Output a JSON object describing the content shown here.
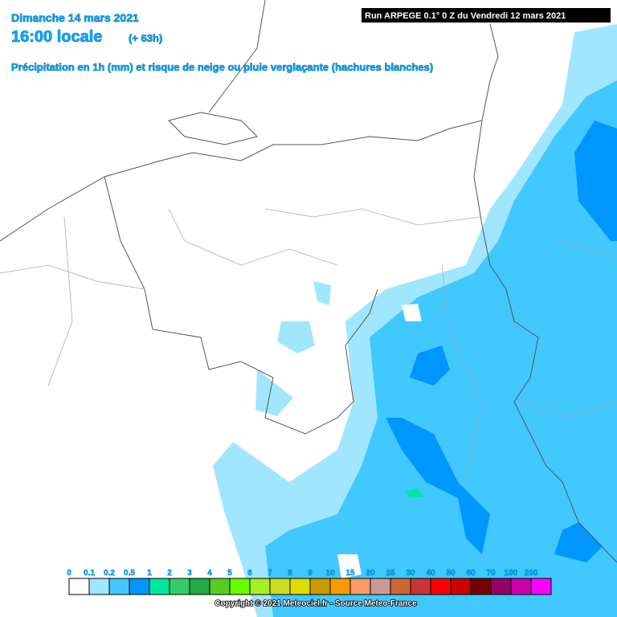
{
  "header": {
    "date": "Dimanche 14 mars 2021",
    "time": "16:00 locale",
    "offset": "(+ 63h)",
    "subtitle": "Précipitation en 1h (mm) et risque de neige ou pluie verglaçante (hachures blanches)",
    "run": "Run ARPEGE 0.1° 0 Z du Vendredi 12 mars 2021"
  },
  "legend": {
    "items": [
      {
        "label": "0",
        "color": "#ffffff"
      },
      {
        "label": "0.1",
        "color": "#a0e6ff"
      },
      {
        "label": "0.2",
        "color": "#40c8ff"
      },
      {
        "label": "0.5",
        "color": "#0096ff"
      },
      {
        "label": "1",
        "color": "#00e6a0"
      },
      {
        "label": "2",
        "color": "#33cc66"
      },
      {
        "label": "3",
        "color": "#22aa44"
      },
      {
        "label": "4",
        "color": "#55cc22"
      },
      {
        "label": "5",
        "color": "#66ff00"
      },
      {
        "label": "6",
        "color": "#aaee22"
      },
      {
        "label": "7",
        "color": "#ccdd22"
      },
      {
        "label": "8",
        "color": "#dddd00"
      },
      {
        "label": "9",
        "color": "#cc9900"
      },
      {
        "label": "10",
        "color": "#ff9900"
      },
      {
        "label": "15",
        "color": "#ff9966"
      },
      {
        "label": "20",
        "color": "#cc9999"
      },
      {
        "label": "25",
        "color": "#cc6633"
      },
      {
        "label": "30",
        "color": "#cc3333"
      },
      {
        "label": "40",
        "color": "#ff0000"
      },
      {
        "label": "50",
        "color": "#cc0000"
      },
      {
        "label": "60",
        "color": "#770000"
      },
      {
        "label": "70",
        "color": "#990066"
      },
      {
        "label": "100",
        "color": "#cc00aa"
      },
      {
        "label": "200",
        "color": "#ff00ff"
      }
    ]
  },
  "copyright": "Copyright © 2021 Meteociel.fr - Source Meteo-France"
}
